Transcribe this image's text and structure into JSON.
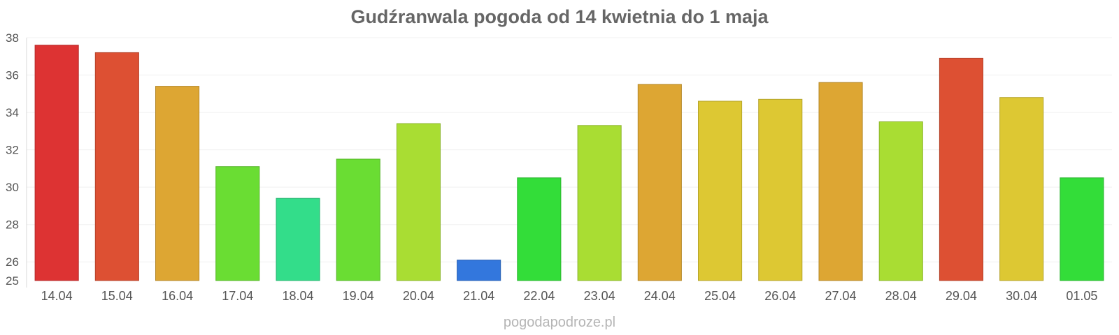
{
  "chart_data": {
    "type": "bar",
    "title": "Gudźranwala pogoda od 14 kwietnia do 1 maja",
    "xlabel": "",
    "ylabel": "",
    "ylim": [
      25,
      38
    ],
    "yticks": [
      25,
      26,
      28,
      30,
      32,
      34,
      36,
      38
    ],
    "grid": true,
    "legend": "none",
    "categories": [
      "14.04",
      "15.04",
      "16.04",
      "17.04",
      "18.04",
      "19.04",
      "20.04",
      "21.04",
      "22.04",
      "23.04",
      "24.04",
      "25.04",
      "26.04",
      "27.04",
      "28.04",
      "29.04",
      "30.04",
      "01.05"
    ],
    "values": [
      37.6,
      37.2,
      35.4,
      31.1,
      29.4,
      31.5,
      33.4,
      26.1,
      30.5,
      33.3,
      35.5,
      34.6,
      34.7,
      35.6,
      33.5,
      36.9,
      34.8,
      30.5
    ],
    "colors": [
      "#dd3333",
      "#dd5033",
      "#dda633",
      "#6add33",
      "#33dd8a",
      "#6add33",
      "#a9dd33",
      "#3377dd",
      "#33dd39",
      "#a9dd33",
      "#dda633",
      "#ddc833",
      "#ddc833",
      "#dda633",
      "#a9dd33",
      "#dd5033",
      "#ddc833",
      "#33dd39"
    ]
  },
  "watermark": "pogodapodroze.pl"
}
